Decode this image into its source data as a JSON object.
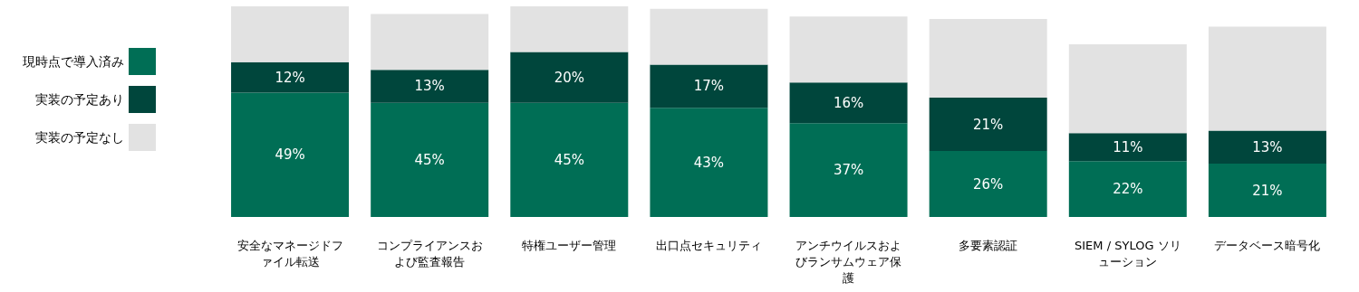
{
  "chart_data": {
    "type": "bar",
    "stacked": true,
    "categories": [
      "安全なマネージドファイル転送",
      "コンプライアンスおよび監査報告",
      "特権ユーザー管理",
      "出口点セキュリティ",
      "アンチウイルスおよびランサムウェア保護",
      "多要素認証",
      "SIEM / SYLOG ソリューション",
      "データベース暗号化"
    ],
    "series": [
      {
        "name": "現時点で導入済み",
        "color": "#006e55",
        "values": [
          49,
          45,
          45,
          43,
          37,
          26,
          22,
          21
        ],
        "value_labels": [
          "49%",
          "45%",
          "45%",
          "43%",
          "37%",
          "26%",
          "22%",
          "21%"
        ]
      },
      {
        "name": "実装の予定あり",
        "color": "#00463c",
        "values": [
          12,
          13,
          20,
          17,
          16,
          21,
          11,
          13
        ],
        "value_labels": [
          "12%",
          "13%",
          "20%",
          "17%",
          "16%",
          "21%",
          "11%",
          "13%"
        ]
      },
      {
        "name": "実装の予定なし",
        "color": "#e2e2e2",
        "values": [
          22,
          22,
          18,
          22,
          26,
          31,
          35,
          41
        ]
      }
    ],
    "ylim": [
      0,
      83
    ],
    "legend": "left",
    "tick_labels": "x"
  }
}
